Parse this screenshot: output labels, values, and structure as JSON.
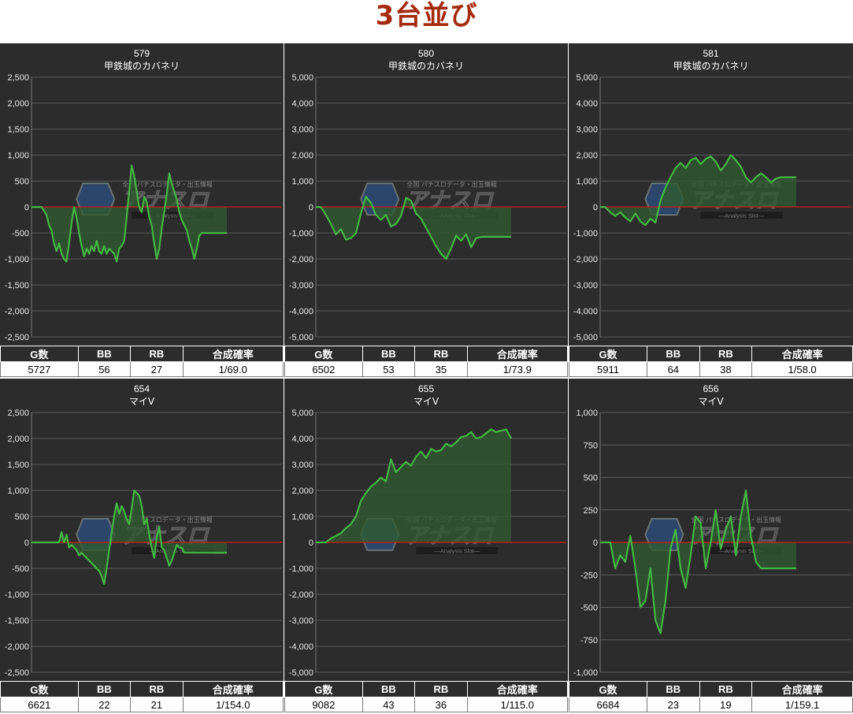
{
  "title": "3台並び",
  "watermark": {
    "top_text": "全国 パチスロデータ・出玉情報",
    "logo_text": "アナスロ",
    "sub_text": "—Analysis Slot—"
  },
  "table_headers": [
    "G数",
    "BB",
    "RB",
    "合成確率"
  ],
  "colors": {
    "background": "#2c2c2c",
    "line": "#44b844",
    "fill": "#2f5a2f",
    "zero_line": "#d01818",
    "title": "#a52a0e"
  },
  "chart_data": [
    {
      "type": "area",
      "machine_no": "579",
      "machine_name": "甲鉄城のカバネリ",
      "ylim": [
        -2500,
        2500
      ],
      "ytick_step": 500,
      "grid": true,
      "x": [
        0,
        2,
        4,
        6,
        7,
        8,
        9,
        10,
        11,
        12,
        13,
        14,
        15,
        16,
        17,
        18,
        19,
        20,
        21,
        22,
        23,
        24,
        25,
        26,
        27,
        28,
        29,
        30,
        31,
        32,
        33,
        34,
        35,
        36,
        37,
        38,
        39,
        40,
        41,
        42,
        43,
        44,
        45,
        46,
        47,
        48,
        49,
        50,
        51,
        52,
        53,
        54,
        55,
        56,
        57,
        58,
        59,
        60,
        61,
        62,
        63,
        64,
        65,
        66,
        67,
        68,
        69,
        70,
        71,
        72,
        73,
        74,
        75,
        76,
        77,
        78
      ],
      "values": [
        0,
        0,
        0,
        -150,
        -350,
        -450,
        -700,
        -850,
        -700,
        -900,
        -1000,
        -1050,
        -700,
        -300,
        0,
        -200,
        -500,
        -750,
        -950,
        -800,
        -900,
        -750,
        -850,
        -650,
        -850,
        -900,
        -750,
        -900,
        -800,
        -850,
        -900,
        -1050,
        -800,
        -750,
        -650,
        -200,
        300,
        800,
        600,
        300,
        0,
        -100,
        200,
        100,
        -200,
        -350,
        -700,
        -1000,
        -800,
        -400,
        -100,
        250,
        650,
        450,
        300,
        150,
        -100,
        -250,
        -350,
        -450,
        -650,
        -800,
        -1000,
        -800,
        -550,
        -500,
        -500,
        -500,
        -500,
        -500,
        -500,
        -500,
        -500,
        -500,
        -500,
        -500
      ]
    },
    {
      "type": "area",
      "machine_no": "580",
      "machine_name": "甲鉄城のカバネリ",
      "ylim": [
        -5000,
        5000
      ],
      "ytick_step": 1000,
      "grid": true,
      "x": [
        0,
        2,
        4,
        6,
        8,
        10,
        12,
        14,
        16,
        18,
        20,
        22,
        24,
        26,
        28,
        30,
        32,
        34,
        36,
        38,
        40,
        42,
        44,
        46,
        48,
        50,
        52,
        54,
        56,
        58,
        60,
        62,
        64,
        66,
        68,
        70,
        72,
        74,
        76,
        78
      ],
      "values": [
        0,
        0,
        -300,
        -650,
        -1050,
        -850,
        -1250,
        -1200,
        -1000,
        -250,
        400,
        150,
        -300,
        -500,
        -300,
        -750,
        -650,
        -350,
        350,
        250,
        -250,
        -450,
        -800,
        -1150,
        -1500,
        -1800,
        -2000,
        -1600,
        -1100,
        -1300,
        -1050,
        -1550,
        -1200,
        -1150,
        -1150,
        -1150,
        -1150,
        -1150,
        -1150,
        -1150
      ]
    },
    {
      "type": "area",
      "machine_no": "581",
      "machine_name": "甲鉄城のカバネリ",
      "ylim": [
        -5000,
        5000
      ],
      "ytick_step": 1000,
      "grid": true,
      "x": [
        0,
        2,
        4,
        6,
        8,
        10,
        12,
        14,
        16,
        18,
        20,
        22,
        24,
        26,
        28,
        30,
        32,
        34,
        36,
        38,
        40,
        42,
        44,
        46,
        48,
        50,
        52,
        54,
        56,
        58,
        60,
        62,
        64,
        66,
        68,
        70,
        72,
        74,
        76,
        78
      ],
      "values": [
        0,
        0,
        -200,
        -350,
        -200,
        -400,
        -550,
        -250,
        -550,
        -700,
        -450,
        -600,
        250,
        750,
        1150,
        1500,
        1700,
        1500,
        1800,
        1900,
        1650,
        1850,
        1950,
        1750,
        1400,
        1650,
        2000,
        1800,
        1550,
        1150,
        950,
        1150,
        1300,
        1150,
        950,
        1100,
        1150,
        1150,
        1150,
        1150
      ]
    },
    {
      "type": "area",
      "machine_no": "654",
      "machine_name": "マイV",
      "ylim": [
        -2500,
        2500
      ],
      "ytick_step": 500,
      "grid": true,
      "x": [
        0,
        2,
        4,
        6,
        7,
        8,
        9,
        10,
        11,
        12,
        13,
        14,
        15,
        16,
        17,
        18,
        19,
        20,
        21,
        22,
        23,
        24,
        25,
        26,
        27,
        28,
        29,
        30,
        31,
        32,
        33,
        34,
        35,
        36,
        37,
        38,
        39,
        40,
        41,
        42,
        43,
        44,
        45,
        46,
        47,
        48,
        49,
        50,
        51,
        52,
        53,
        54,
        55,
        56,
        57,
        58,
        59,
        60,
        61,
        62,
        63,
        64,
        65,
        66,
        67,
        68,
        69,
        70,
        71,
        72,
        73,
        74,
        75,
        76,
        77,
        78
      ],
      "values": [
        0,
        0,
        0,
        0,
        0,
        0,
        0,
        0,
        0,
        200,
        0,
        150,
        -100,
        -50,
        -100,
        -150,
        -250,
        -200,
        -250,
        -300,
        -350,
        -400,
        -450,
        -500,
        -550,
        -650,
        -800,
        -500,
        -150,
        200,
        500,
        750,
        550,
        700,
        600,
        450,
        350,
        650,
        1000,
        950,
        900,
        700,
        350,
        450,
        150,
        -100,
        -300,
        100,
        300,
        -100,
        -150,
        -300,
        -450,
        -350,
        -200,
        -50,
        -100,
        -100,
        -200,
        -200,
        -200,
        -200,
        -200,
        -200,
        -200,
        -200,
        -200,
        -200,
        -200,
        -200,
        -200,
        -200,
        -200,
        -200,
        -200,
        -200
      ]
    },
    {
      "type": "area",
      "machine_no": "655",
      "machine_name": "マイV",
      "ylim": [
        -5000,
        5000
      ],
      "ytick_step": 1000,
      "grid": true,
      "x": [
        0,
        2,
        4,
        6,
        8,
        10,
        12,
        14,
        16,
        18,
        20,
        22,
        24,
        26,
        28,
        30,
        32,
        34,
        36,
        38,
        40,
        42,
        44,
        46,
        48,
        50,
        52,
        54,
        56,
        58,
        60,
        62,
        64,
        66,
        68,
        70,
        72,
        74,
        76,
        78
      ],
      "values": [
        0,
        0,
        0,
        150,
        250,
        350,
        550,
        700,
        1000,
        1600,
        1900,
        2150,
        2300,
        2500,
        2350,
        3200,
        2700,
        2900,
        3100,
        2950,
        3300,
        3500,
        3250,
        3600,
        3500,
        3550,
        3800,
        3700,
        3850,
        4050,
        4100,
        4250,
        4000,
        4050,
        4200,
        4350,
        4250,
        4300,
        4350,
        4000
      ]
    },
    {
      "type": "area",
      "machine_no": "656",
      "machine_name": "マイV",
      "ylim": [
        -1000,
        1000
      ],
      "ytick_step": 250,
      "grid": true,
      "x": [
        0,
        2,
        4,
        6,
        8,
        10,
        12,
        14,
        16,
        18,
        20,
        22,
        24,
        26,
        28,
        30,
        32,
        34,
        36,
        38,
        40,
        42,
        44,
        46,
        48,
        50,
        52,
        54,
        56,
        58,
        60,
        62,
        64,
        66,
        68,
        70,
        72,
        74,
        76,
        78
      ],
      "values": [
        0,
        0,
        0,
        -200,
        -100,
        -150,
        50,
        -200,
        -500,
        -450,
        -200,
        -600,
        -700,
        -450,
        -50,
        100,
        -200,
        -350,
        -100,
        200,
        150,
        -200,
        0,
        250,
        -50,
        100,
        200,
        -100,
        200,
        400,
        50,
        -150,
        -200,
        -200,
        -200,
        -200,
        -200,
        -200,
        -200,
        -200
      ]
    }
  ],
  "stats": [
    {
      "g": "5727",
      "bb": "56",
      "rb": "27",
      "rate": "1/69.0"
    },
    {
      "g": "6502",
      "bb": "53",
      "rb": "35",
      "rate": "1/73.9"
    },
    {
      "g": "5911",
      "bb": "64",
      "rb": "38",
      "rate": "1/58.0"
    },
    {
      "g": "6621",
      "bb": "22",
      "rb": "21",
      "rate": "1/154.0"
    },
    {
      "g": "9082",
      "bb": "43",
      "rb": "36",
      "rate": "1/115.0"
    },
    {
      "g": "6684",
      "bb": "23",
      "rb": "19",
      "rate": "1/159.1"
    }
  ]
}
